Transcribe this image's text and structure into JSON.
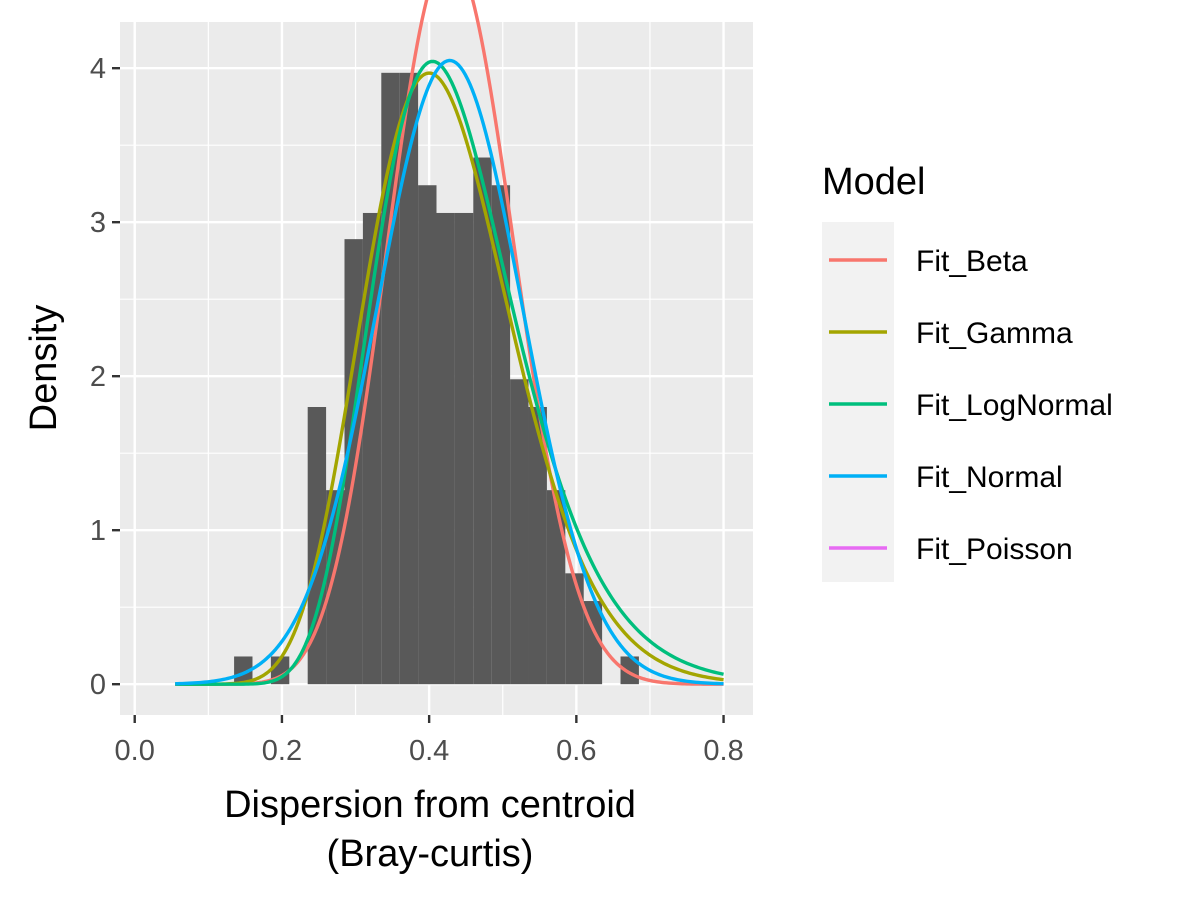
{
  "chart_data": {
    "type": "histogram",
    "title": "",
    "xlabel": [
      "Dispersion from centroid",
      "(Bray-curtis)"
    ],
    "ylabel": "Density",
    "xlim": [
      -0.02,
      0.84
    ],
    "ylim": [
      -0.2,
      4.3
    ],
    "x_ticks": [
      0.0,
      0.2,
      0.4,
      0.6,
      0.8
    ],
    "x_tick_labels": [
      "0.0",
      "0.2",
      "0.4",
      "0.6",
      "0.8"
    ],
    "y_ticks": [
      0,
      1,
      2,
      3,
      4
    ],
    "y_tick_labels": [
      "0",
      "1",
      "2",
      "3",
      "4"
    ],
    "grid": true,
    "panel_background": "#ebebeb",
    "histogram": {
      "color": "#595959",
      "bins": [
        {
          "x0": 0.135,
          "x1": 0.16,
          "density": 0.18
        },
        {
          "x0": 0.16,
          "x1": 0.185,
          "density": 0.0
        },
        {
          "x0": 0.185,
          "x1": 0.21,
          "density": 0.18
        },
        {
          "x0": 0.21,
          "x1": 0.235,
          "density": 0.0
        },
        {
          "x0": 0.235,
          "x1": 0.26,
          "density": 1.8
        },
        {
          "x0": 0.26,
          "x1": 0.285,
          "density": 1.26
        },
        {
          "x0": 0.285,
          "x1": 0.31,
          "density": 2.89
        },
        {
          "x0": 0.31,
          "x1": 0.335,
          "density": 3.06
        },
        {
          "x0": 0.335,
          "x1": 0.36,
          "density": 3.97
        },
        {
          "x0": 0.36,
          "x1": 0.385,
          "density": 3.97
        },
        {
          "x0": 0.385,
          "x1": 0.41,
          "density": 3.24
        },
        {
          "x0": 0.41,
          "x1": 0.435,
          "density": 3.06
        },
        {
          "x0": 0.435,
          "x1": 0.46,
          "density": 3.06
        },
        {
          "x0": 0.46,
          "x1": 0.485,
          "density": 3.42
        },
        {
          "x0": 0.485,
          "x1": 0.51,
          "density": 3.24
        },
        {
          "x0": 0.51,
          "x1": 0.535,
          "density": 1.98
        },
        {
          "x0": 0.535,
          "x1": 0.56,
          "density": 1.8
        },
        {
          "x0": 0.56,
          "x1": 0.585,
          "density": 1.26
        },
        {
          "x0": 0.585,
          "x1": 0.61,
          "density": 0.72
        },
        {
          "x0": 0.61,
          "x1": 0.635,
          "density": 0.54
        },
        {
          "x0": 0.635,
          "x1": 0.66,
          "density": 0.0
        },
        {
          "x0": 0.66,
          "x1": 0.685,
          "density": 0.18
        },
        {
          "x0": 0.685,
          "x1": 0.71,
          "density": 0.0
        }
      ]
    },
    "x_range_curves": [
      0.055,
      0.8
    ],
    "series": [
      {
        "name": "Fit_Beta",
        "color": "#f8766d",
        "dist": "beta",
        "params": {
          "alpha": 15.2,
          "beta": 20.0
        }
      },
      {
        "name": "Fit_Gamma",
        "color": "#a3a500",
        "dist": "gamma",
        "params": {
          "shape": 17.0,
          "rate": 40.0
        }
      },
      {
        "name": "Fit_LogNormal",
        "color": "#00bf7d",
        "dist": "lognormal",
        "params": {
          "meanlog": -0.8485,
          "sdlog": 0.237
        }
      },
      {
        "name": "Fit_Normal",
        "color": "#00b0f6",
        "dist": "normal",
        "params": {
          "mean": 0.428,
          "sd": 0.0985
        }
      },
      {
        "name": "Fit_Poisson",
        "color": "#e76bf3",
        "dist": "none",
        "params": {}
      }
    ],
    "legend": {
      "title": "Model",
      "placement": "right"
    }
  }
}
